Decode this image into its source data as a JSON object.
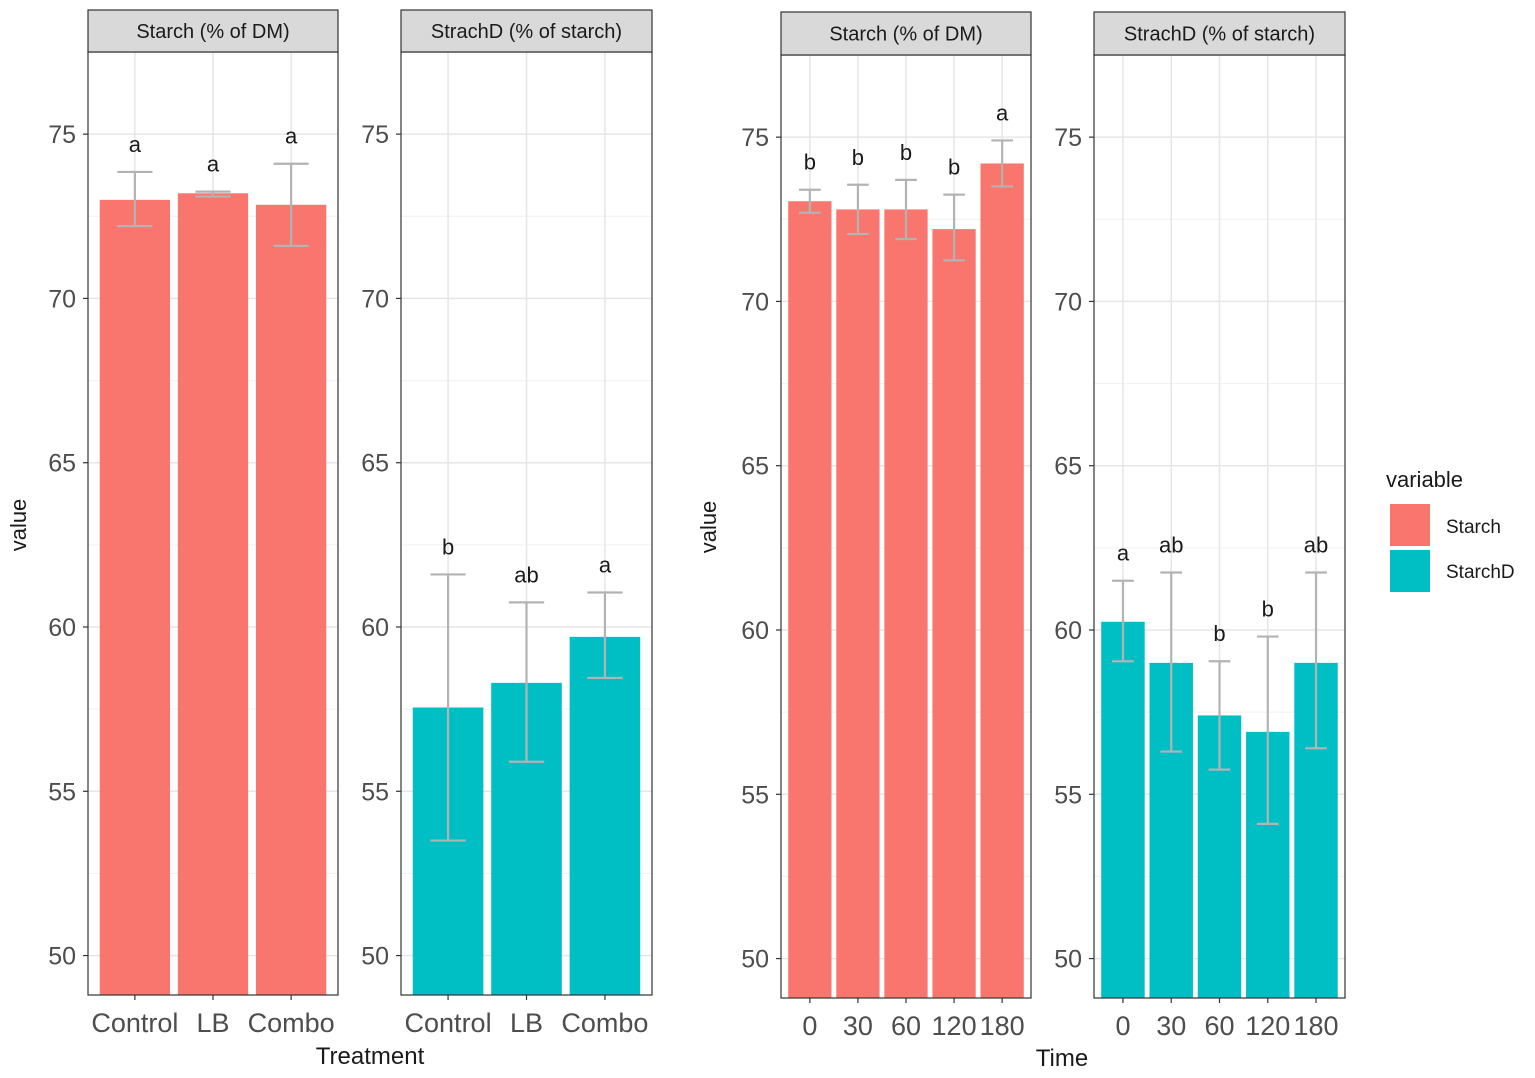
{
  "figure": {
    "left_ylabel": "value",
    "left_xlabel": "Treatment",
    "right_ylabel": "value",
    "right_xlabel": "Time"
  },
  "legend": {
    "title": "variable",
    "items": [
      {
        "label": "Starch",
        "color": "#F8766D"
      },
      {
        "label": "StarchD",
        "color": "#00BFC4"
      }
    ]
  },
  "chart_data": [
    {
      "type": "bar",
      "title": "Starch (% of DM)",
      "categories": [
        "Control",
        "LB",
        "Combo"
      ],
      "values": [
        73.0,
        73.2,
        72.85
      ],
      "error_low": [
        72.2,
        73.1,
        71.6
      ],
      "error_high": [
        73.85,
        73.25,
        74.1
      ],
      "letters": [
        "a",
        "a",
        "a"
      ],
      "color": "#F8766D",
      "ylim": [
        48.8,
        77.5
      ],
      "yticks": [
        50,
        55,
        60,
        65,
        70,
        75
      ],
      "ylabel": "value",
      "xlabel": "Treatment"
    },
    {
      "type": "bar",
      "title": "StrachD (% of starch)",
      "categories": [
        "Control",
        "LB",
        "Combo"
      ],
      "values": [
        57.55,
        58.3,
        59.7
      ],
      "error_low": [
        53.5,
        55.9,
        58.45
      ],
      "error_high": [
        61.6,
        60.75,
        61.05
      ],
      "letters": [
        "b",
        "ab",
        "a"
      ],
      "color": "#00BFC4",
      "ylim": [
        48.8,
        77.5
      ],
      "yticks": [
        50,
        55,
        60,
        65,
        70,
        75
      ],
      "ylabel": "value",
      "xlabel": "Treatment"
    },
    {
      "type": "bar",
      "title": "Starch (% of DM)",
      "categories": [
        "0",
        "30",
        "60",
        "120",
        "180"
      ],
      "values": [
        73.05,
        72.8,
        72.8,
        72.2,
        74.2
      ],
      "error_low": [
        72.7,
        72.05,
        71.9,
        71.25,
        73.5
      ],
      "error_high": [
        73.4,
        73.55,
        73.7,
        73.25,
        74.9
      ],
      "letters": [
        "b",
        "b",
        "b",
        "b",
        "a"
      ],
      "color": "#F8766D",
      "ylim": [
        48.8,
        77.5
      ],
      "yticks": [
        50,
        55,
        60,
        65,
        70,
        75
      ],
      "ylabel": "value",
      "xlabel": "Time"
    },
    {
      "type": "bar",
      "title": "StrachD (% of starch)",
      "categories": [
        "0",
        "30",
        "60",
        "120",
        "180"
      ],
      "values": [
        60.25,
        59.0,
        57.4,
        56.9,
        59.0
      ],
      "error_low": [
        59.05,
        56.3,
        55.75,
        54.1,
        56.4
      ],
      "error_high": [
        61.5,
        61.75,
        59.05,
        59.8,
        61.75
      ],
      "letters": [
        "a",
        "ab",
        "b",
        "b",
        "ab"
      ],
      "color": "#00BFC4",
      "ylim": [
        48.8,
        77.5
      ],
      "yticks": [
        50,
        55,
        60,
        65,
        70,
        75
      ],
      "ylabel": "value",
      "xlabel": "Time"
    }
  ]
}
